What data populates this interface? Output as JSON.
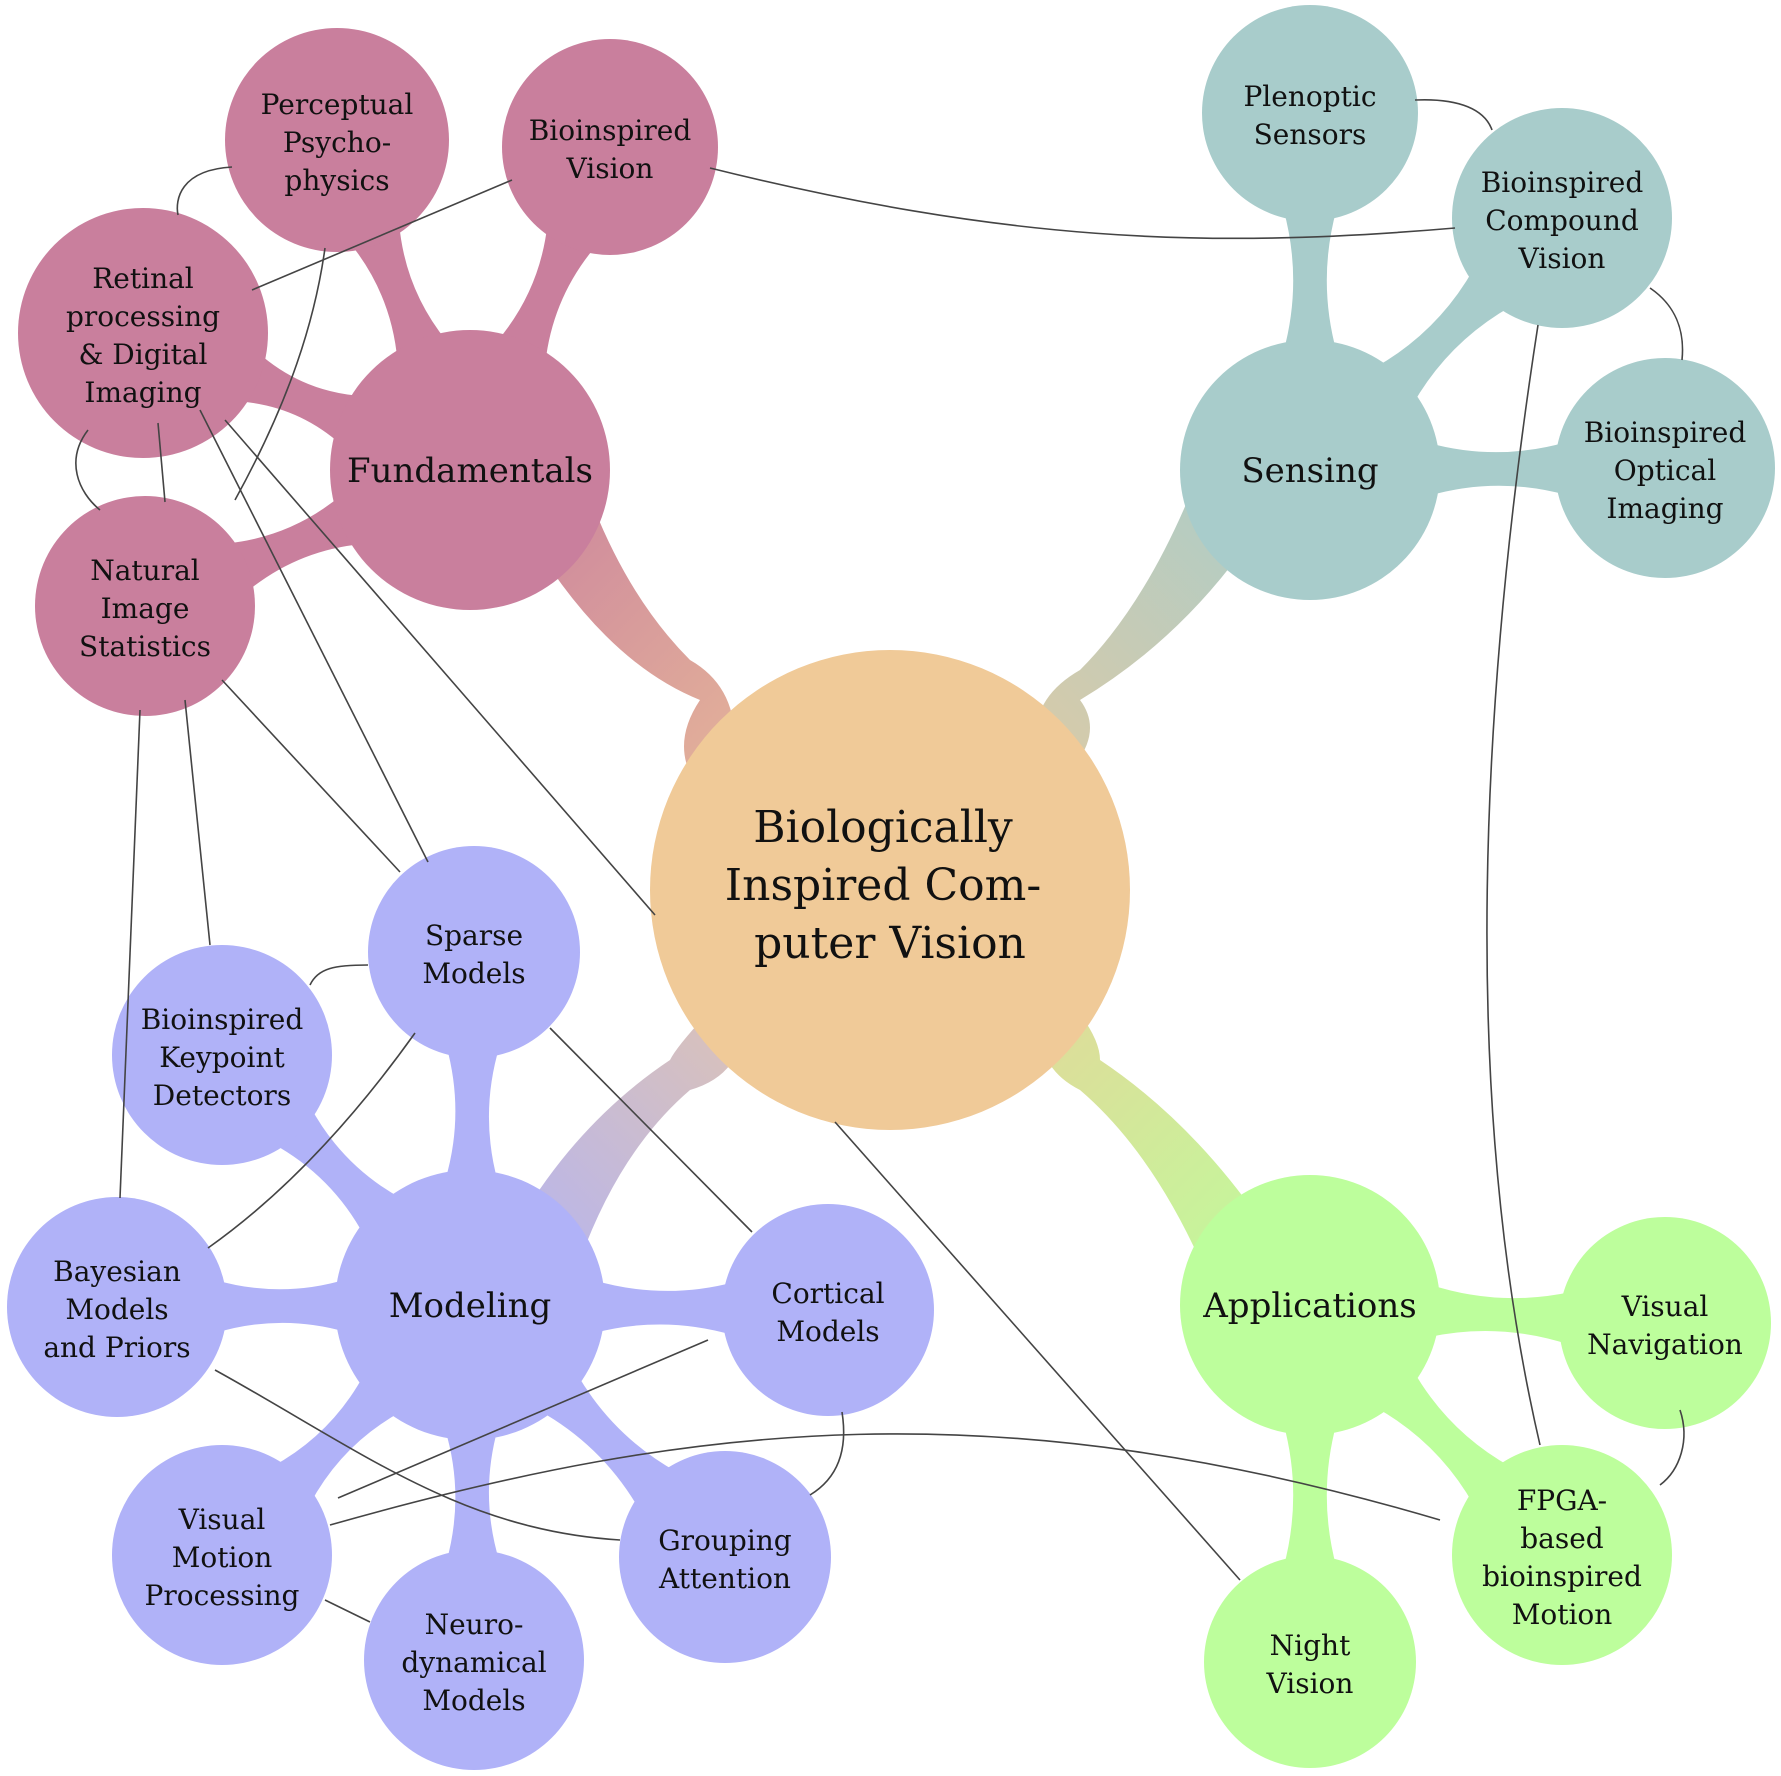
{
  "center": {
    "lines": [
      "Biologically",
      "Inspired Com-",
      "puter Vision"
    ],
    "color": "#f0ca98"
  },
  "branches": [
    {
      "id": "fundamentals",
      "label": "Fundamentals",
      "color": "#c97f9d",
      "leaves": [
        {
          "id": "bioinspired-vision",
          "lines": [
            "Bioinspired",
            "Vision"
          ]
        },
        {
          "id": "perceptual-psychophysics",
          "lines": [
            "Perceptual",
            "Psycho-",
            "physics"
          ]
        },
        {
          "id": "retinal-processing",
          "lines": [
            "Retinal",
            "processing",
            "& Digital",
            "Imaging"
          ]
        },
        {
          "id": "natural-image-statistics",
          "lines": [
            "Natural",
            "Image",
            "Statistics"
          ]
        }
      ]
    },
    {
      "id": "sensing",
      "label": "Sensing",
      "color": "#a8cccb",
      "leaves": [
        {
          "id": "plenoptic-sensors",
          "lines": [
            "Plenoptic",
            "Sensors"
          ]
        },
        {
          "id": "bioinspired-compound-vision",
          "lines": [
            "Bioinspired",
            "Compound",
            "Vision"
          ]
        },
        {
          "id": "bioinspired-optical-imaging",
          "lines": [
            "Bioinspired",
            "Optical",
            "Imaging"
          ]
        }
      ]
    },
    {
      "id": "modeling",
      "label": "Modeling",
      "color": "#b0b2f8",
      "leaves": [
        {
          "id": "sparse-models",
          "lines": [
            "Sparse",
            "Models"
          ]
        },
        {
          "id": "keypoint-detectors",
          "lines": [
            "Bioinspired",
            "Keypoint",
            "Detectors"
          ]
        },
        {
          "id": "bayesian-models",
          "lines": [
            "Bayesian",
            "Models",
            "and Priors"
          ]
        },
        {
          "id": "visual-motion",
          "lines": [
            "Visual",
            "Motion",
            "Processing"
          ]
        },
        {
          "id": "neurodynamical",
          "lines": [
            "Neuro-",
            "dynamical",
            "Models"
          ]
        },
        {
          "id": "grouping-attention",
          "lines": [
            "Grouping",
            "Attention"
          ]
        },
        {
          "id": "cortical-models",
          "lines": [
            "Cortical",
            "Models"
          ]
        }
      ]
    },
    {
      "id": "applications",
      "label": "Applications",
      "color": "#bdfe9c",
      "leaves": [
        {
          "id": "visual-navigation",
          "lines": [
            "Visual",
            "Navigation"
          ]
        },
        {
          "id": "fpga-motion",
          "lines": [
            "FPGA-",
            "based",
            "bioinspired",
            "Motion"
          ]
        },
        {
          "id": "night-vision",
          "lines": [
            "Night",
            "Vision"
          ]
        }
      ]
    }
  ]
}
